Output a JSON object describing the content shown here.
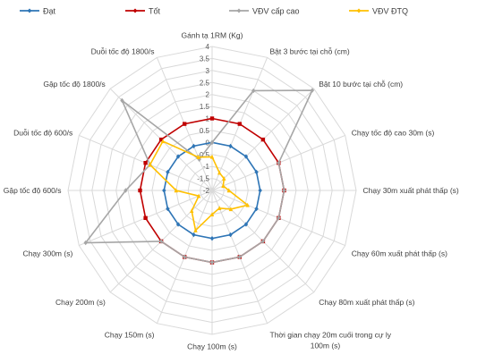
{
  "chart_data": {
    "type": "radar",
    "title": "",
    "categories": [
      "Gánh tạ 1RM (Kg)",
      "Bật 3 bước tại chỗ (cm)",
      "Bật 10 bước tại chỗ (cm)",
      "Chạy tốc độ cao 30m (s)",
      "Chạy 30m xuất phát thấp (s)",
      "Chạy 60m xuất phát thấp (s)",
      "Chạy 80m xuất phát thấp (s)",
      "Thời gian chạy 20m cuối trong cự ly 100m (s)",
      "Chạy 100m (s)",
      "Chạy 150m (s)",
      "Chạy 200m (s)",
      "Chạy 300m (s)",
      "Gập tốc độ 600/s",
      "Duỗi tốc độ 600/s",
      "Gập tốc độ 1800/s",
      "Duỗi tốc độ 1800/s"
    ],
    "rlim": [
      -2,
      4
    ],
    "r_ticks": [
      -2,
      -1.5,
      -1,
      -0.5,
      0,
      0.5,
      1,
      1.5,
      2,
      2.5,
      3,
      3.5,
      4
    ],
    "r_tick_labels": [
      "-2",
      "-1.5",
      "-1",
      "-0.5",
      "0",
      "0.5",
      "1",
      "1.5",
      "2",
      "2.5",
      "3",
      "3.5",
      "4"
    ],
    "legend_position": "top",
    "series": [
      {
        "name": "Đạt",
        "color": "#2E75B6",
        "marker": "diamond",
        "values": [
          0,
          0,
          0,
          0,
          0,
          0,
          0,
          0,
          0,
          0,
          0,
          0,
          0,
          0,
          0,
          0
        ]
      },
      {
        "name": "Tốt",
        "color": "#C00000",
        "marker": "square",
        "values": [
          1,
          1,
          1,
          1,
          1,
          1,
          1,
          1,
          1,
          1,
          1,
          1,
          1,
          1,
          1,
          1
        ]
      },
      {
        "name": "VĐV cấp cao",
        "color": "#A6A6A6",
        "marker": "diamond",
        "values": [
          0,
          2.5,
          3.9,
          1,
          1,
          1,
          1,
          1,
          1,
          1,
          1,
          3.7,
          1.6,
          0.8,
          3.3,
          -0.6
        ]
      },
      {
        "name": "VĐV ĐTQ",
        "color": "#FFC000",
        "marker": "triangle",
        "values": [
          -0.6,
          -1.2,
          -1.3,
          -1.5,
          -1.3,
          -0.4,
          -0.9,
          -1.2,
          -1.0,
          -0.2,
          -0.8,
          -1.4,
          -0.5,
          0.8,
          0.9,
          -0.5
        ]
      }
    ]
  }
}
